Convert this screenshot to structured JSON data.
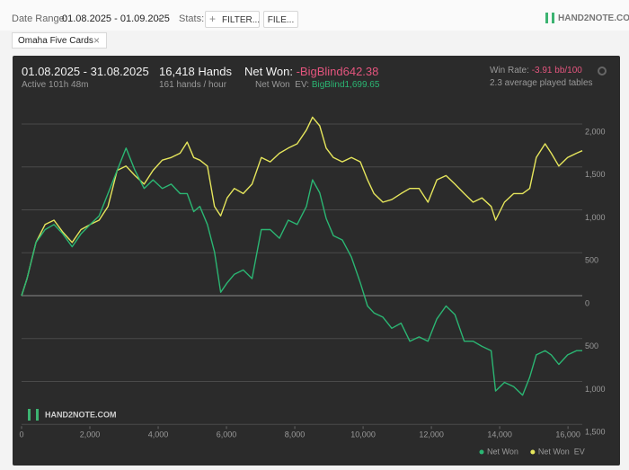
{
  "toolbar": {
    "date_range_label": "Date Range:",
    "date_range": "01.08.2025 - 01.09.2025",
    "stats_label": "Stats:",
    "filter_button": "FILTER...",
    "file_button": "FILE...",
    "logo": "HAND2NOTE.COM"
  },
  "tab": "Omaha Five Cards",
  "summary": {
    "period": "01.08.2025 - 31.08.2025",
    "active": "Active 101h 48m",
    "hands": "16,418 Hands",
    "hands_per_hour": "161 hands / hour",
    "net_won_label": "Net Won:",
    "net_won": "-BigBlind642.38",
    "net_won_ev_label": "Net Won  EV:",
    "net_won_ev": "BigBlind1,699.65",
    "win_rate_label": "Win Rate:",
    "win_rate": "-3.91 bb/100",
    "tables": "2.3 average played tables"
  },
  "chart_data": {
    "type": "line",
    "x": [
      0,
      160,
      420,
      690,
      950,
      1210,
      1480,
      1740,
      2010,
      2270,
      2530,
      2800,
      3060,
      3320,
      3590,
      3850,
      4120,
      4380,
      4640,
      4850,
      5040,
      5220,
      5440,
      5650,
      5830,
      6020,
      6230,
      6490,
      6750,
      7020,
      7280,
      7550,
      7810,
      8070,
      8340,
      8520,
      8730,
      8920,
      9130,
      9390,
      9660,
      9920,
      10130,
      10320,
      10580,
      10840,
      11110,
      11370,
      11640,
      11900,
      12160,
      12430,
      12690,
      12960,
      13220,
      13480,
      13750,
      13880,
      14140,
      14410,
      14670,
      14880,
      15070,
      15330,
      15510,
      15730,
      15990,
      16250,
      16418
    ],
    "series": [
      {
        "name": "Net Won",
        "color": "#2bb673",
        "values": [
          0,
          200,
          620,
          770,
          830,
          720,
          570,
          720,
          830,
          930,
          1190,
          1460,
          1720,
          1460,
          1250,
          1350,
          1250,
          1300,
          1190,
          1190,
          980,
          1040,
          830,
          510,
          40,
          150,
          250,
          300,
          200,
          770,
          770,
          670,
          880,
          830,
          1040,
          1350,
          1200,
          900,
          700,
          650,
          450,
          150,
          -120,
          -200,
          -250,
          -380,
          -320,
          -530,
          -480,
          -530,
          -270,
          -120,
          -220,
          -530,
          -530,
          -590,
          -640,
          -1110,
          -1010,
          -1060,
          -1160,
          -950,
          -690,
          -640,
          -690,
          -800,
          -690,
          -640,
          -640
        ]
      },
      {
        "name": "Net Won  EV",
        "color": "#e6e65c",
        "values": [
          0,
          200,
          620,
          830,
          880,
          740,
          620,
          770,
          830,
          880,
          1040,
          1460,
          1510,
          1400,
          1300,
          1460,
          1580,
          1610,
          1660,
          1790,
          1610,
          1580,
          1510,
          1040,
          930,
          1140,
          1250,
          1190,
          1300,
          1610,
          1560,
          1660,
          1720,
          1770,
          1930,
          2080,
          1980,
          1720,
          1610,
          1560,
          1610,
          1560,
          1350,
          1190,
          1090,
          1120,
          1190,
          1250,
          1250,
          1090,
          1350,
          1400,
          1300,
          1190,
          1090,
          1140,
          1040,
          880,
          1090,
          1190,
          1190,
          1250,
          1610,
          1770,
          1660,
          1510,
          1610,
          1660,
          1690
        ]
      }
    ],
    "xlim": [
      0,
      16418
    ],
    "xticks": [
      0,
      {
        "value": 2000,
        "label": "2,000"
      },
      {
        "value": 4000,
        "label": "4,000"
      },
      {
        "value": 6000,
        "label": "6,000"
      },
      {
        "value": 8000,
        "label": "8,000"
      },
      {
        "value": 10000,
        "label": "10,000"
      },
      {
        "value": 12000,
        "label": "12,000"
      },
      {
        "value": 14000,
        "label": "14,000"
      },
      {
        "value": 16000,
        "label": "16,000"
      }
    ],
    "ylim": [
      -1500,
      2300
    ],
    "yticks": [
      {
        "value": -1500,
        "label": "1,500"
      },
      {
        "value": -1000,
        "label": "1,000"
      },
      {
        "value": -500,
        "label": "500"
      },
      0,
      500,
      {
        "value": 1000,
        "label": "1,000"
      },
      {
        "value": 1500,
        "label": "1,500"
      },
      {
        "value": 2000,
        "label": "2,000"
      }
    ],
    "grid": true,
    "legend": "bottom-right",
    "watermark": "HAND2NOTE.COM"
  }
}
